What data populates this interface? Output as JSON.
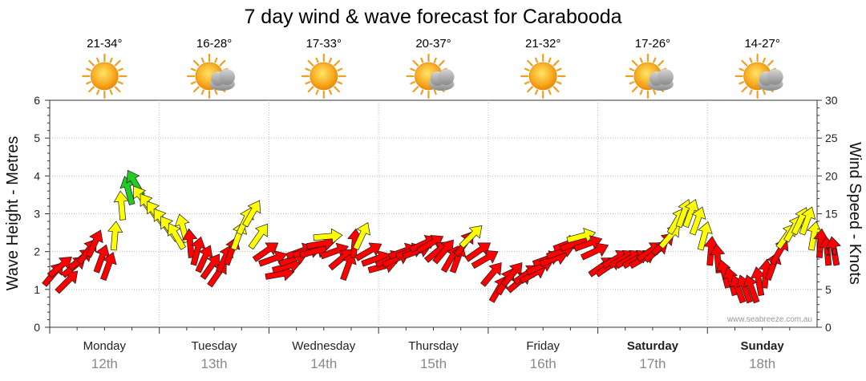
{
  "chart_data": {
    "type": "line",
    "title": "7 day wind & wave forecast for Carabooda",
    "ylabel_left": "Wave Height - Metres",
    "ylabel_right": "Wind Speed - Knots",
    "ylim_left": [
      0,
      6
    ],
    "ylim_right": [
      0,
      30
    ],
    "yticks_left": [
      "0",
      "1",
      "2",
      "3",
      "4",
      "5",
      "6"
    ],
    "yticks_right": [
      "0",
      "5",
      "10",
      "15",
      "20",
      "25",
      "30"
    ],
    "credit": "www.seabreeze.com.au",
    "days": [
      {
        "name": "Monday",
        "date": "12th",
        "temp": "21-34°",
        "icon": "sun-icon",
        "bold": false
      },
      {
        "name": "Tuesday",
        "date": "13th",
        "temp": "16-28°",
        "icon": "sun-cloud-icon",
        "bold": false
      },
      {
        "name": "Wednesday",
        "date": "14th",
        "temp": "17-33°",
        "icon": "sun-icon",
        "bold": false
      },
      {
        "name": "Thursday",
        "date": "15th",
        "temp": "20-37°",
        "icon": "sun-cloud-icon",
        "bold": false
      },
      {
        "name": "Friday",
        "date": "16th",
        "temp": "21-32°",
        "icon": "sun-icon",
        "bold": false
      },
      {
        "name": "Saturday",
        "date": "17th",
        "temp": "17-26°",
        "icon": "sun-cloud-icon",
        "bold": true
      },
      {
        "name": "Sunday",
        "date": "18th",
        "temp": "14-27°",
        "icon": "sun-cloud-icon",
        "bold": true
      }
    ],
    "series": [
      {
        "name": "wind",
        "unit": "knots",
        "day_offset": 0,
        "step_days": 0.0625,
        "values": [
          7,
          8,
          6,
          8,
          9,
          10,
          11,
          9,
          8,
          12,
          16,
          18,
          19,
          17,
          16,
          15,
          14,
          13,
          12,
          13,
          11,
          10,
          9,
          8,
          7,
          9,
          10,
          12,
          14,
          15,
          12,
          10,
          9,
          7,
          8,
          9,
          10,
          10,
          10,
          11,
          12,
          10,
          9,
          8,
          11,
          12,
          10,
          9,
          8,
          9,
          9,
          10,
          10,
          10,
          11,
          11,
          10,
          10,
          9,
          9,
          11,
          12,
          10,
          9,
          7,
          5,
          6,
          7,
          6,
          7,
          7,
          8,
          9,
          9,
          10,
          11,
          11,
          12,
          11,
          10,
          8,
          8,
          9,
          9,
          9,
          9,
          9,
          10,
          10,
          11,
          12,
          14,
          15,
          15,
          14,
          12,
          10,
          9,
          7,
          6,
          5,
          5,
          5,
          6,
          7,
          8,
          10,
          12,
          13,
          14,
          14,
          12,
          11,
          10,
          10
        ]
      },
      {
        "name": "direction",
        "unit": "degrees_from",
        "values": [
          220,
          230,
          225,
          230,
          230,
          215,
          205,
          200,
          200,
          185,
          175,
          165,
          150,
          145,
          145,
          145,
          145,
          145,
          150,
          165,
          175,
          195,
          205,
          215,
          215,
          205,
          200,
          200,
          205,
          210,
          215,
          235,
          250,
          260,
          255,
          250,
          250,
          255,
          255,
          260,
          265,
          250,
          230,
          200,
          185,
          205,
          240,
          250,
          255,
          245,
          245,
          250,
          250,
          250,
          245,
          240,
          230,
          220,
          210,
          200,
          215,
          225,
          235,
          240,
          220,
          210,
          210,
          220,
          230,
          235,
          240,
          245,
          250,
          250,
          250,
          250,
          250,
          255,
          250,
          245,
          235,
          235,
          240,
          240,
          240,
          240,
          240,
          235,
          230,
          225,
          220,
          210,
          200,
          200,
          200,
          195,
          185,
          175,
          165,
          165,
          160,
          160,
          160,
          170,
          185,
          200,
          210,
          215,
          210,
          205,
          200,
          190,
          185,
          175,
          170
        ]
      }
    ]
  }
}
